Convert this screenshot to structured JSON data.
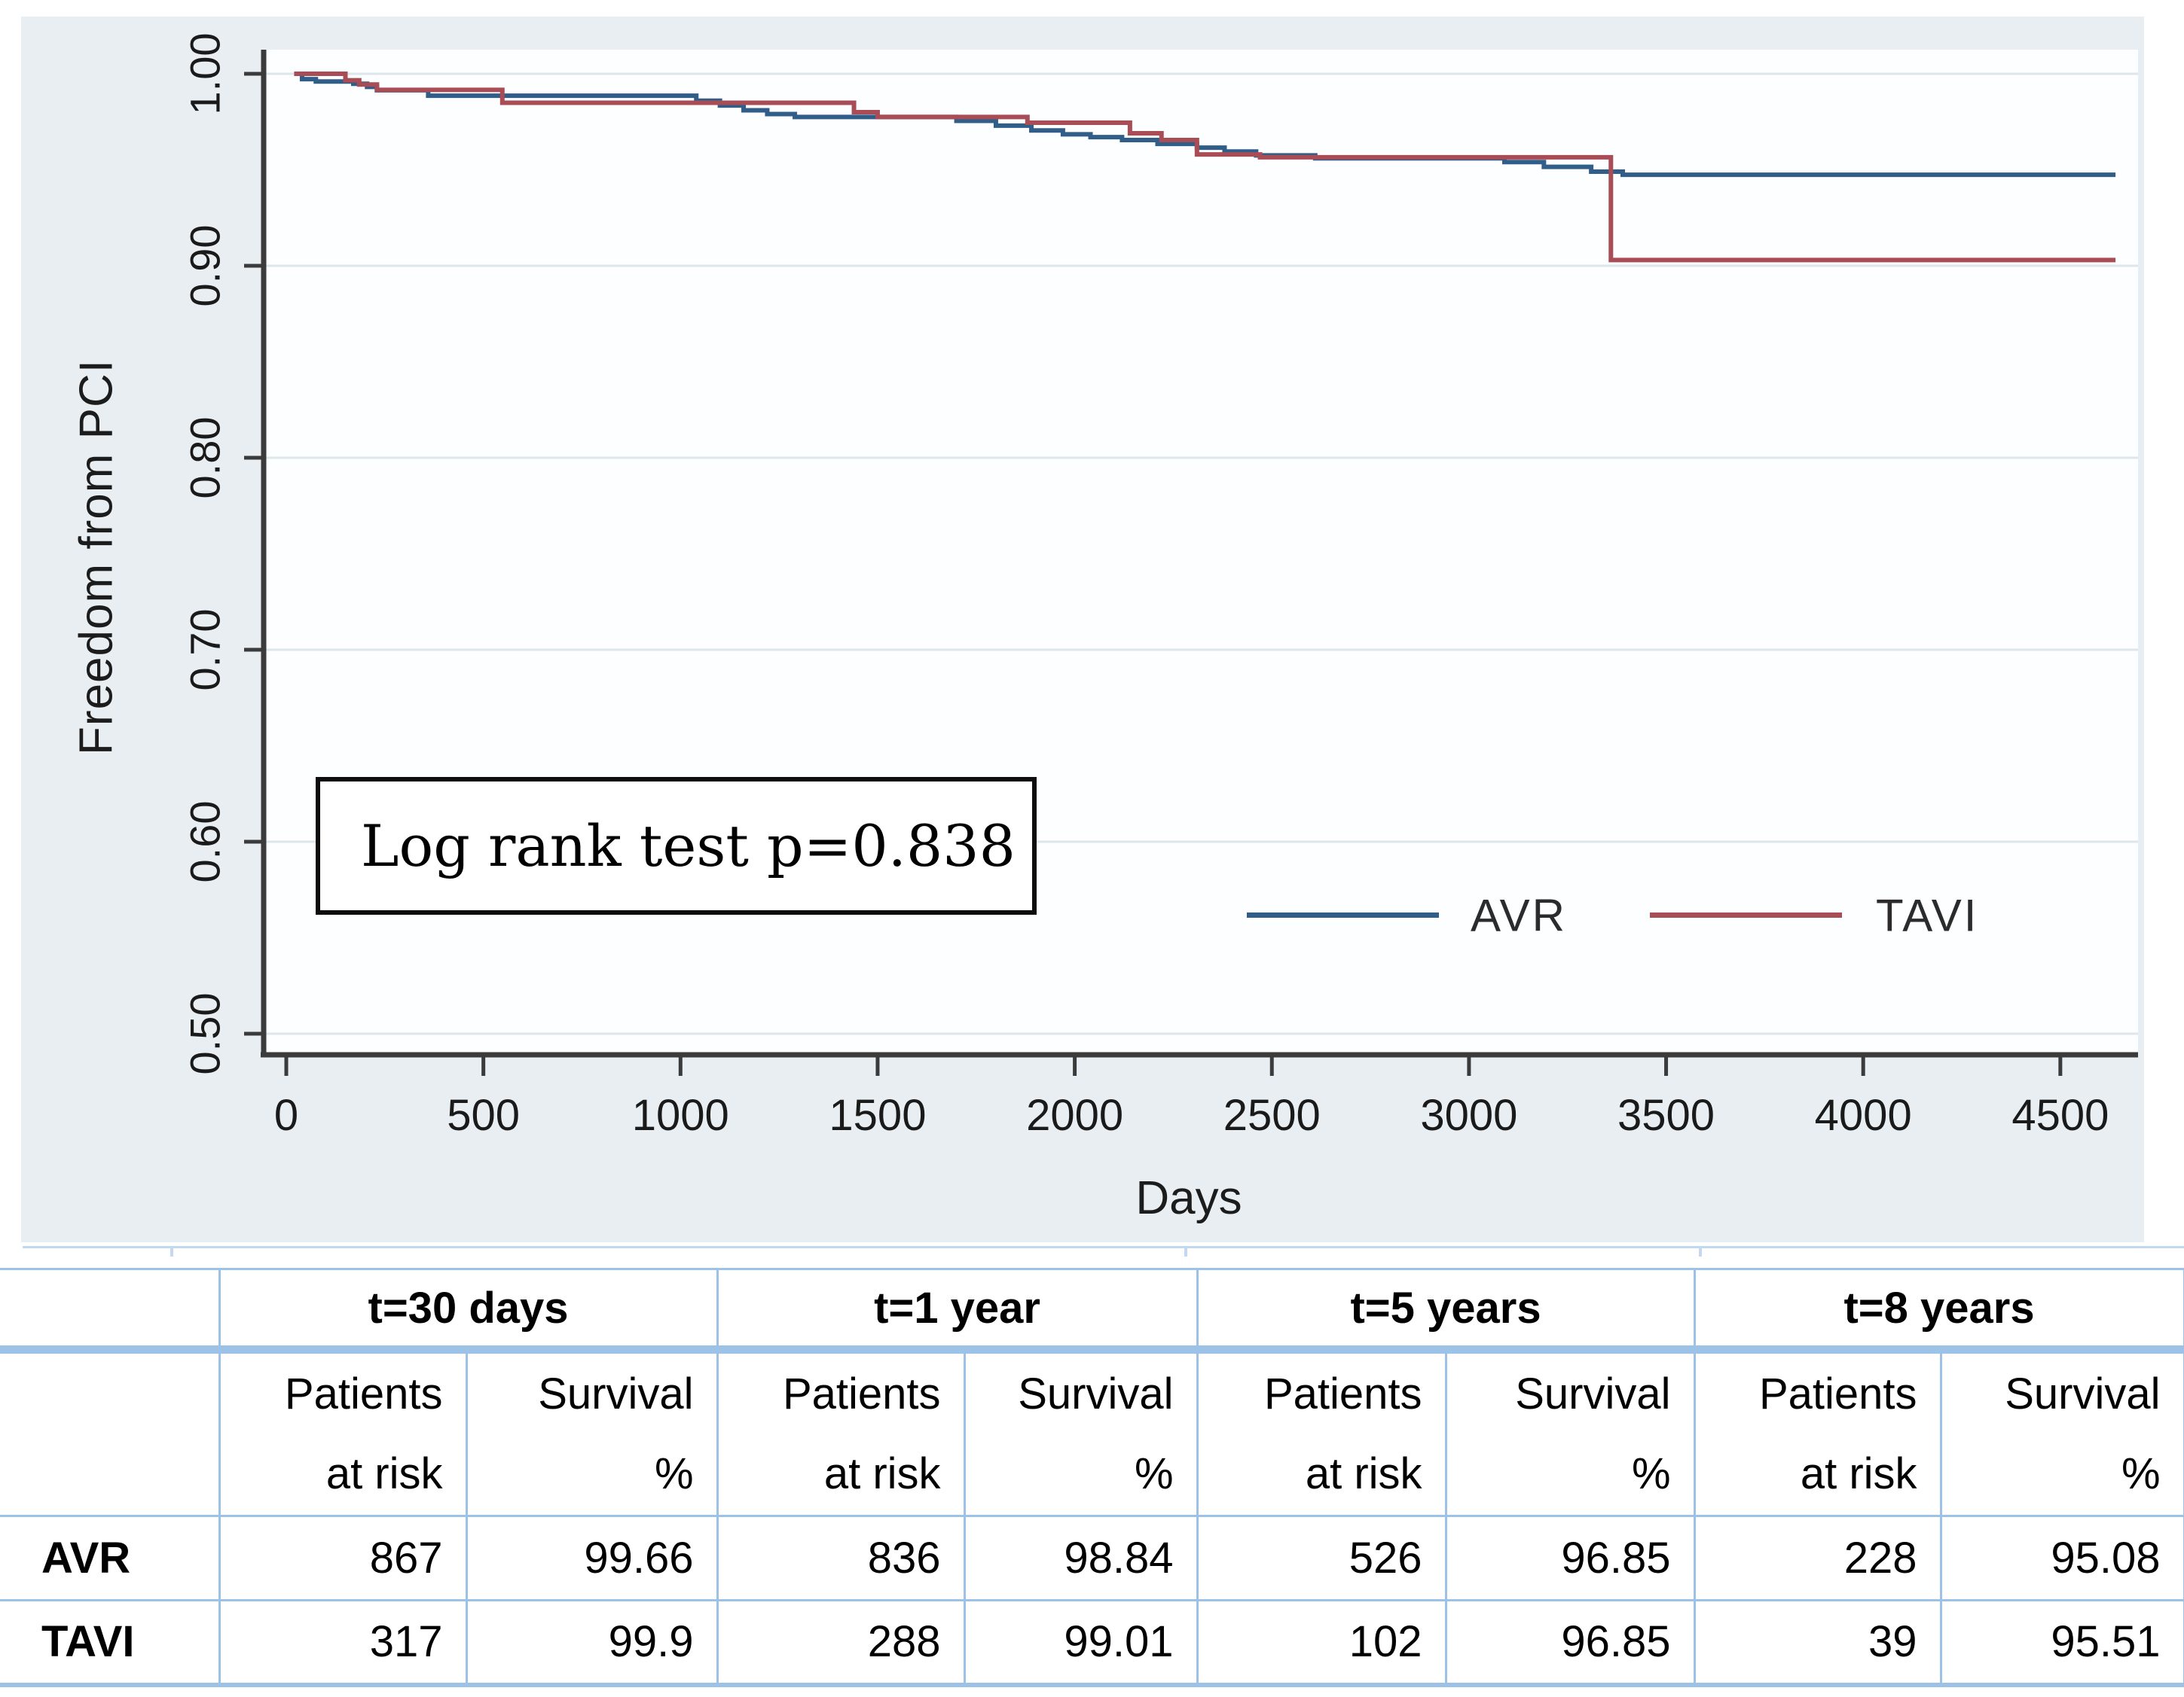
{
  "chart": {
    "ylabel": "Freedom from PCI",
    "xlabel": "Days",
    "annotation": "Log rank test p=0.838",
    "legend": [
      {
        "label": "AVR",
        "color": "#315d89"
      },
      {
        "label": "TAVI",
        "color": "#a84c55"
      }
    ],
    "colors": {
      "chart_background": "#e8eef1",
      "plot_background": "#fdfeff",
      "gridline": "#dde7eb",
      "axis": "#3b3b3b",
      "tick_label": "#1a1a1a",
      "table_border": "#9cc3e7"
    }
  },
  "chart_data": {
    "type": "line",
    "subtype": "kaplan-meier-step",
    "title": "",
    "xlabel": "Days",
    "ylabel": "Freedom from PCI",
    "xlim": [
      0,
      4640
    ],
    "ylim": [
      0.49,
      1.01
    ],
    "grid": "horizontal",
    "legend_position": "inside-bottom-right",
    "annotation": "Log rank test p=0.838",
    "x_ticks": [
      0,
      500,
      1000,
      1500,
      2000,
      2500,
      3000,
      3500,
      4000,
      4500
    ],
    "y_ticks": [
      {
        "v": 1.0,
        "label": "1.00"
      },
      {
        "v": 0.9,
        "label": "0.90"
      },
      {
        "v": 0.8,
        "label": "0.80"
      },
      {
        "v": 0.7,
        "label": "0.70"
      },
      {
        "v": 0.6,
        "label": "0.60"
      },
      {
        "v": 0.5,
        "label": "0.50"
      }
    ],
    "series": [
      {
        "name": "AVR",
        "color": "#315d89",
        "steps": [
          [
            20,
            1.0
          ],
          [
            40,
            0.9972
          ],
          [
            75,
            0.996
          ],
          [
            170,
            0.9948
          ],
          [
            205,
            0.9932
          ],
          [
            230,
            0.9914
          ],
          [
            360,
            0.9886
          ],
          [
            1040,
            0.986
          ],
          [
            1100,
            0.9835
          ],
          [
            1160,
            0.981
          ],
          [
            1220,
            0.979
          ],
          [
            1290,
            0.9775
          ],
          [
            1700,
            0.9755
          ],
          [
            1800,
            0.973
          ],
          [
            1890,
            0.9705
          ],
          [
            1970,
            0.9685
          ],
          [
            2040,
            0.967
          ],
          [
            2120,
            0.9655
          ],
          [
            2210,
            0.9635
          ],
          [
            2310,
            0.9615
          ],
          [
            2380,
            0.9595
          ],
          [
            2460,
            0.9575
          ],
          [
            2610,
            0.956
          ],
          [
            3090,
            0.954
          ],
          [
            3190,
            0.9515
          ],
          [
            3310,
            0.949
          ],
          [
            3390,
            0.9474
          ],
          [
            4640,
            0.9474
          ]
        ]
      },
      {
        "name": "TAVI",
        "color": "#a84c55",
        "steps": [
          [
            20,
            1.0
          ],
          [
            150,
            0.9966
          ],
          [
            185,
            0.9944
          ],
          [
            230,
            0.9916
          ],
          [
            548,
            0.9849
          ],
          [
            1440,
            0.98
          ],
          [
            1500,
            0.9775
          ],
          [
            1880,
            0.9745
          ],
          [
            2140,
            0.969
          ],
          [
            2220,
            0.9655
          ],
          [
            2310,
            0.958
          ],
          [
            2470,
            0.9565
          ],
          [
            3360,
            0.903
          ],
          [
            4640,
            0.903
          ]
        ]
      }
    ],
    "checkpoints": {
      "timepoints": [
        "t=30 days",
        "t=1 year",
        "t=5 years",
        "t=8 years"
      ],
      "AVR": {
        "patients_at_risk": [
          867,
          836,
          526,
          228
        ],
        "survival_pct": [
          99.66,
          98.84,
          96.85,
          95.08
        ]
      },
      "TAVI": {
        "patients_at_risk": [
          317,
          288,
          102,
          39
        ],
        "survival_pct": [
          99.9,
          99.01,
          96.85,
          95.51
        ]
      }
    }
  },
  "risk_table": {
    "groups": [
      {
        "label": "t=30 days"
      },
      {
        "label": "t=1 year"
      },
      {
        "label": "t=5 years"
      },
      {
        "label": "t=8 years"
      }
    ],
    "subheader": {
      "patients_line1": "Patients",
      "patients_line2": "at risk",
      "survival_line1": "Survival",
      "survival_line2": "%"
    },
    "rows": [
      {
        "label": "AVR",
        "values": [
          "867",
          "99.66",
          "836",
          "98.84",
          "526",
          "96.85",
          "228",
          "95.08"
        ]
      },
      {
        "label": "TAVI",
        "values": [
          "317",
          "99.9",
          "288",
          "99.01",
          "102",
          "96.85",
          "39",
          "95.51"
        ]
      }
    ]
  }
}
